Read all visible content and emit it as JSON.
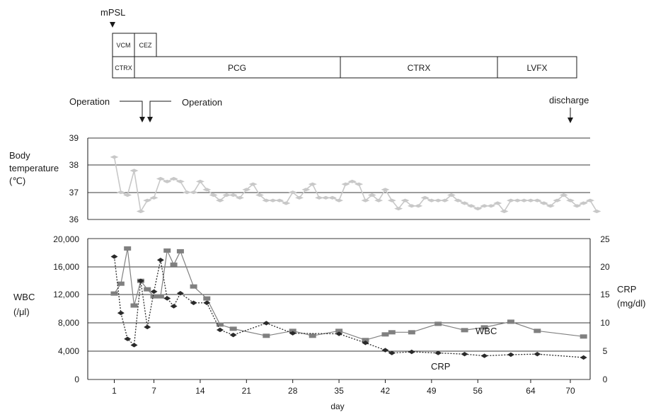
{
  "treatment": {
    "mpsl_label": "mPSL",
    "antibiotics": [
      "VCM",
      "CEZ",
      "CTRX",
      "PCG",
      "CTRX",
      "LVFX"
    ]
  },
  "events": {
    "operation_1": "Operation",
    "operation_2": "Operation",
    "discharge": "discharge"
  },
  "colors": {
    "temperature": "#c8c8c8",
    "wbc": "#808080",
    "crp": "#2a2a2a",
    "grid": "#3a3a3a"
  },
  "chart_data": [
    {
      "type": "line",
      "panel": "temperature",
      "ylabel": [
        "Body",
        "temperature",
        "(℃)"
      ],
      "ylim": [
        36,
        39
      ],
      "yticks": [
        "36",
        "37",
        "38",
        "39"
      ],
      "grid": true,
      "series": [
        {
          "marker": "diamond",
          "points": [
            [
              1,
              38.3
            ],
            [
              2,
              37.0
            ],
            [
              3,
              36.9
            ],
            [
              4,
              37.8
            ],
            [
              5,
              36.3
            ],
            [
              6,
              36.7
            ],
            [
              7,
              36.8
            ],
            [
              8,
              37.5
            ],
            [
              9,
              37.4
            ],
            [
              10,
              37.5
            ],
            [
              11,
              37.4
            ],
            [
              12,
              37.0
            ],
            [
              13,
              37.0
            ],
            [
              14,
              37.4
            ],
            [
              15,
              37.1
            ],
            [
              16,
              36.9
            ],
            [
              17,
              36.7
            ],
            [
              18,
              36.9
            ],
            [
              19,
              36.9
            ],
            [
              20,
              36.8
            ],
            [
              21,
              37.1
            ],
            [
              22,
              37.3
            ],
            [
              23,
              36.9
            ],
            [
              24,
              36.7
            ],
            [
              25,
              36.7
            ],
            [
              26,
              36.7
            ],
            [
              27,
              36.6
            ],
            [
              28,
              37.0
            ],
            [
              29,
              36.8
            ],
            [
              30,
              37.1
            ],
            [
              31,
              37.3
            ],
            [
              32,
              36.8
            ],
            [
              33,
              36.8
            ],
            [
              34,
              36.8
            ],
            [
              35,
              36.7
            ],
            [
              36,
              37.3
            ],
            [
              37,
              37.4
            ],
            [
              38,
              37.3
            ],
            [
              39,
              36.7
            ],
            [
              40,
              36.9
            ],
            [
              41,
              36.7
            ],
            [
              42,
              37.1
            ],
            [
              43,
              36.7
            ],
            [
              44,
              36.4
            ],
            [
              45,
              36.7
            ],
            [
              46,
              36.5
            ],
            [
              47,
              36.5
            ],
            [
              48,
              36.8
            ],
            [
              49,
              36.7
            ],
            [
              50,
              36.7
            ],
            [
              51,
              36.7
            ],
            [
              52,
              36.9
            ],
            [
              53,
              36.7
            ],
            [
              54,
              36.6
            ],
            [
              55,
              36.5
            ],
            [
              56,
              36.4
            ],
            [
              57,
              36.5
            ],
            [
              58,
              36.5
            ],
            [
              59,
              36.6
            ],
            [
              60,
              36.3
            ],
            [
              61,
              36.7
            ],
            [
              62,
              36.7
            ],
            [
              63,
              36.7
            ],
            [
              64,
              36.7
            ],
            [
              65,
              36.7
            ],
            [
              66,
              36.6
            ],
            [
              67,
              36.5
            ],
            [
              68,
              36.7
            ],
            [
              69,
              36.9
            ],
            [
              70,
              36.7
            ],
            [
              71,
              36.5
            ],
            [
              72,
              36.6
            ],
            [
              73,
              36.7
            ],
            [
              74,
              36.3
            ]
          ]
        }
      ]
    },
    {
      "type": "line",
      "panel": "labs",
      "xlabel": "day",
      "xticks": [
        1,
        7,
        14,
        21,
        28,
        35,
        42,
        49,
        56,
        64,
        70
      ],
      "ylabel_left": [
        "WBC",
        "(/μl)"
      ],
      "ylim_left": [
        0,
        20000
      ],
      "yticks_left": [
        "0",
        "4,000",
        "8,000",
        "12,000",
        "16,000",
        "20,000"
      ],
      "ylabel_right": [
        "CRP",
        "(mg/dl)"
      ],
      "ylim_right": [
        0,
        25
      ],
      "yticks_right": [
        "0",
        "5",
        "10",
        "15",
        "20",
        "25"
      ],
      "grid": true,
      "series": [
        {
          "name": "WBC",
          "axis": "left",
          "marker": "square",
          "line": "solid",
          "points": [
            [
              1,
              12200
            ],
            [
              2,
              13600
            ],
            [
              3,
              18600
            ],
            [
              4,
              10500
            ],
            [
              5,
              14000
            ],
            [
              6,
              12800
            ],
            [
              7,
              11800
            ],
            [
              8,
              11800
            ],
            [
              9,
              18300
            ],
            [
              10,
              16300
            ],
            [
              11,
              18200
            ],
            [
              13,
              13200
            ],
            [
              15,
              11500
            ],
            [
              17,
              7800
            ],
            [
              19,
              7200
            ],
            [
              24,
              6200
            ],
            [
              28,
              6900
            ],
            [
              31,
              6200
            ],
            [
              35,
              6900
            ],
            [
              39,
              5600
            ],
            [
              42,
              6400
            ],
            [
              43,
              6700
            ],
            [
              46,
              6700
            ],
            [
              50,
              7900
            ],
            [
              54,
              7000
            ],
            [
              57,
              7400
            ],
            [
              61,
              8200
            ],
            [
              65,
              6900
            ],
            [
              72,
              6100
            ]
          ]
        },
        {
          "name": "CRP",
          "axis": "right",
          "marker": "diamond",
          "line": "dotted",
          "points": [
            [
              1,
              21.8
            ],
            [
              2,
              11.8
            ],
            [
              3,
              7.2
            ],
            [
              4,
              6.1
            ],
            [
              5,
              17.5
            ],
            [
              6,
              9.3
            ],
            [
              7,
              15.6
            ],
            [
              8,
              21.2
            ],
            [
              9,
              14.4
            ],
            [
              10,
              13.0
            ],
            [
              11,
              15.3
            ],
            [
              13,
              13.6
            ],
            [
              15,
              13.6
            ],
            [
              17,
              8.8
            ],
            [
              19,
              7.9
            ],
            [
              24,
              10.0
            ],
            [
              28,
              8.2
            ],
            [
              35,
              8.1
            ],
            [
              39,
              6.5
            ],
            [
              42,
              5.2
            ],
            [
              43,
              4.7
            ],
            [
              46,
              4.9
            ],
            [
              50,
              4.7
            ],
            [
              54,
              4.5
            ],
            [
              57,
              4.2
            ],
            [
              61,
              4.4
            ],
            [
              65,
              4.5
            ],
            [
              72,
              3.9
            ]
          ]
        }
      ],
      "annotations": [
        "WBC",
        "CRP"
      ]
    }
  ]
}
